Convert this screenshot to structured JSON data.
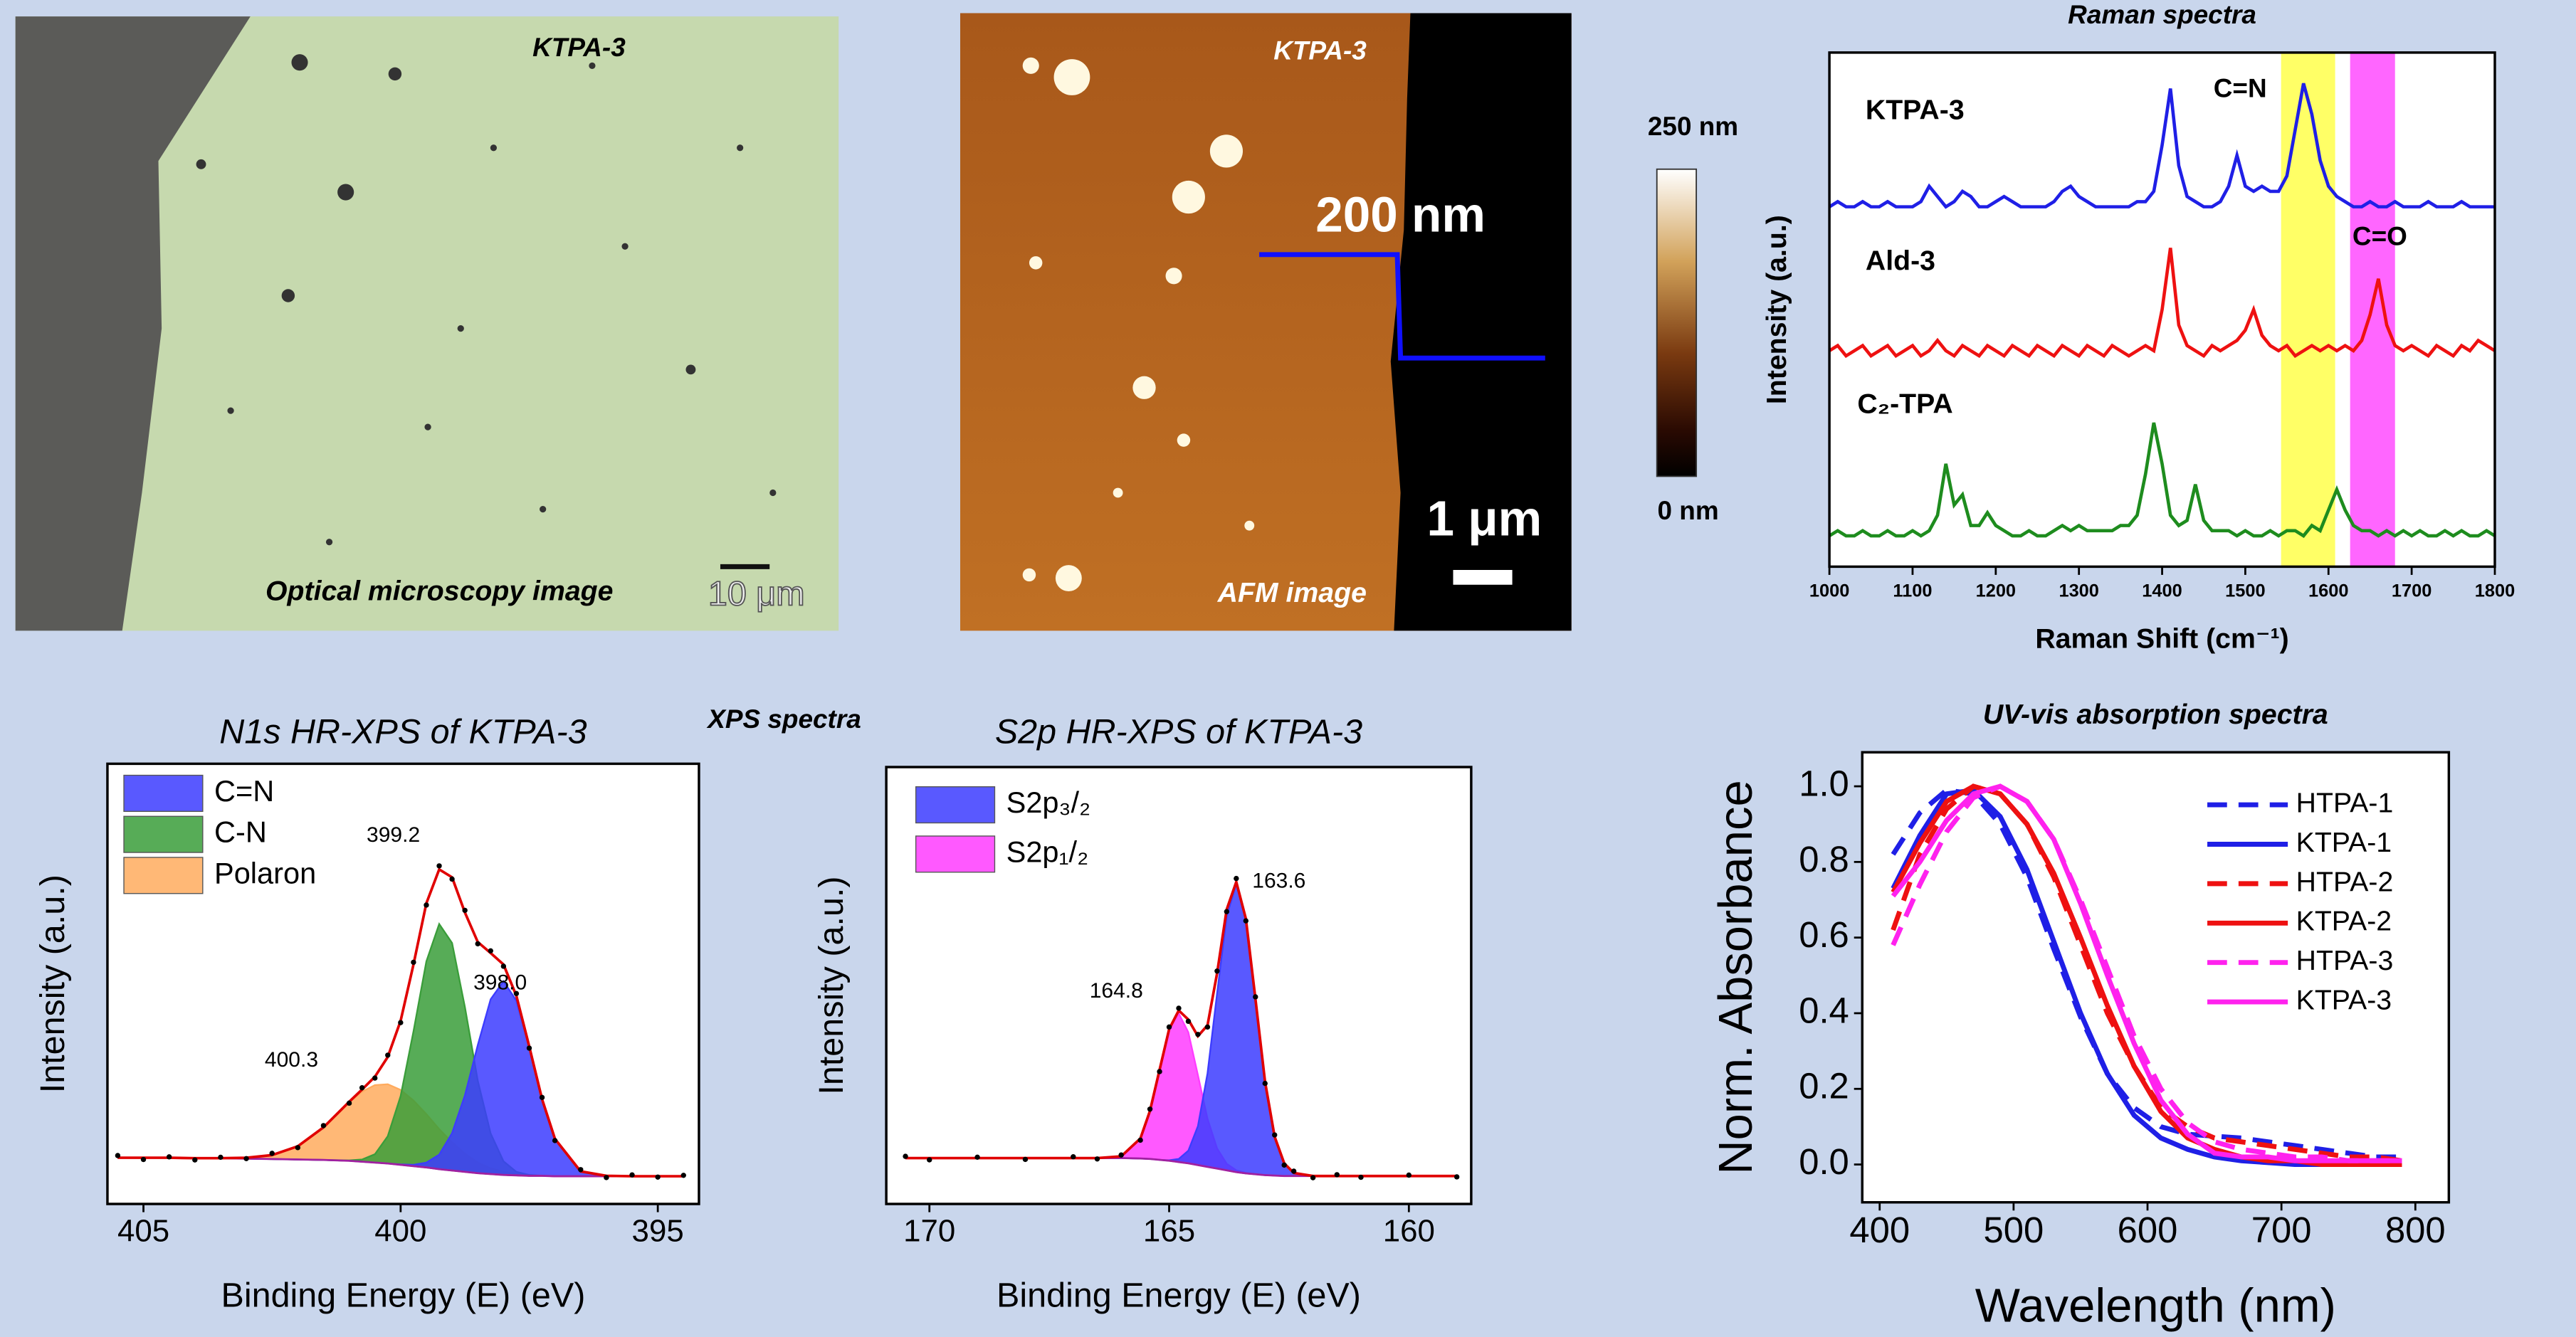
{
  "optical": {
    "sample": "KTPA-3",
    "caption": "Optical microscopy image",
    "scale_bar": "10 μm"
  },
  "afm": {
    "sample": "KTPA-3",
    "caption": "AFM image",
    "step_height": "200 nm",
    "scale_bar": "1 μm",
    "colorbar_max": "250 nm",
    "colorbar_min": "0 nm"
  },
  "xps_header": "XPS spectra",
  "chart_data": [
    {
      "type": "line",
      "title": "Raman spectra",
      "xlabel": "Raman Shift (cm⁻¹)",
      "ylabel": "Intensity (a.u.)",
      "xlim": [
        1000,
        1800
      ],
      "ylim": [
        0,
        1
      ],
      "xticks": [
        1000,
        1100,
        1200,
        1300,
        1400,
        1500,
        1600,
        1700,
        1800
      ],
      "bands": [
        {
          "label": "C=N",
          "range": [
            1543,
            1608
          ],
          "color": "#ffff66"
        },
        {
          "label": "C=O",
          "range": [
            1626,
            1680
          ],
          "color": "#ff66ff"
        }
      ],
      "x": [
        1000,
        1010,
        1020,
        1030,
        1040,
        1050,
        1060,
        1070,
        1080,
        1090,
        1100,
        1110,
        1120,
        1130,
        1140,
        1150,
        1160,
        1170,
        1180,
        1190,
        1200,
        1210,
        1220,
        1230,
        1240,
        1250,
        1260,
        1270,
        1280,
        1290,
        1300,
        1310,
        1320,
        1330,
        1340,
        1350,
        1360,
        1370,
        1380,
        1390,
        1400,
        1410,
        1420,
        1430,
        1440,
        1450,
        1460,
        1470,
        1480,
        1490,
        1500,
        1510,
        1520,
        1530,
        1540,
        1550,
        1560,
        1570,
        1580,
        1590,
        1600,
        1610,
        1620,
        1630,
        1640,
        1650,
        1660,
        1670,
        1680,
        1690,
        1700,
        1710,
        1720,
        1730,
        1740,
        1750,
        1760,
        1770,
        1780,
        1790,
        1800
      ],
      "series": [
        {
          "name": "KTPA-3",
          "color": "#1f1fe6",
          "values": [
            0.7,
            0.71,
            0.7,
            0.7,
            0.71,
            0.7,
            0.7,
            0.71,
            0.7,
            0.7,
            0.7,
            0.71,
            0.74,
            0.72,
            0.7,
            0.71,
            0.73,
            0.72,
            0.7,
            0.7,
            0.71,
            0.72,
            0.71,
            0.7,
            0.7,
            0.7,
            0.7,
            0.71,
            0.73,
            0.74,
            0.72,
            0.71,
            0.7,
            0.7,
            0.7,
            0.7,
            0.7,
            0.71,
            0.71,
            0.73,
            0.82,
            0.93,
            0.78,
            0.72,
            0.71,
            0.7,
            0.7,
            0.71,
            0.74,
            0.8,
            0.74,
            0.73,
            0.74,
            0.73,
            0.73,
            0.76,
            0.85,
            0.94,
            0.88,
            0.79,
            0.74,
            0.72,
            0.71,
            0.7,
            0.7,
            0.71,
            0.7,
            0.7,
            0.71,
            0.7,
            0.7,
            0.7,
            0.71,
            0.7,
            0.7,
            0.7,
            0.71,
            0.7,
            0.7,
            0.7,
            0.7
          ]
        },
        {
          "name": "Ald-3",
          "color": "#ee1111",
          "values": [
            0.42,
            0.43,
            0.41,
            0.42,
            0.43,
            0.41,
            0.42,
            0.43,
            0.41,
            0.42,
            0.43,
            0.41,
            0.42,
            0.44,
            0.42,
            0.41,
            0.43,
            0.42,
            0.41,
            0.43,
            0.42,
            0.41,
            0.43,
            0.42,
            0.41,
            0.43,
            0.42,
            0.41,
            0.43,
            0.42,
            0.41,
            0.43,
            0.42,
            0.41,
            0.43,
            0.42,
            0.41,
            0.42,
            0.43,
            0.42,
            0.5,
            0.62,
            0.47,
            0.43,
            0.42,
            0.41,
            0.43,
            0.42,
            0.43,
            0.44,
            0.46,
            0.5,
            0.45,
            0.43,
            0.42,
            0.43,
            0.41,
            0.42,
            0.43,
            0.42,
            0.43,
            0.42,
            0.43,
            0.42,
            0.44,
            0.49,
            0.56,
            0.47,
            0.43,
            0.42,
            0.43,
            0.42,
            0.41,
            0.43,
            0.42,
            0.41,
            0.43,
            0.42,
            0.44,
            0.43,
            0.42
          ]
        },
        {
          "name": "C₂-TPA",
          "color": "#1e8c1e",
          "values": [
            0.06,
            0.07,
            0.06,
            0.06,
            0.07,
            0.06,
            0.06,
            0.07,
            0.06,
            0.06,
            0.07,
            0.06,
            0.07,
            0.1,
            0.2,
            0.12,
            0.14,
            0.08,
            0.08,
            0.105,
            0.08,
            0.07,
            0.06,
            0.06,
            0.07,
            0.06,
            0.06,
            0.07,
            0.08,
            0.07,
            0.08,
            0.07,
            0.07,
            0.07,
            0.07,
            0.08,
            0.08,
            0.1,
            0.18,
            0.28,
            0.2,
            0.1,
            0.08,
            0.09,
            0.16,
            0.09,
            0.07,
            0.07,
            0.07,
            0.06,
            0.07,
            0.06,
            0.06,
            0.07,
            0.06,
            0.07,
            0.07,
            0.06,
            0.08,
            0.07,
            0.11,
            0.15,
            0.11,
            0.08,
            0.07,
            0.07,
            0.06,
            0.07,
            0.06,
            0.07,
            0.06,
            0.07,
            0.06,
            0.06,
            0.07,
            0.06,
            0.07,
            0.06,
            0.06,
            0.07,
            0.06
          ]
        }
      ]
    },
    {
      "type": "peakfit",
      "title": "N1s HR-XPS of KTPA-3",
      "xlabel": "Binding Energy (E) (eV)",
      "ylabel": "Intensity (a.u.)",
      "xlim": [
        405.7,
        394.2
      ],
      "ylim": [
        0,
        1
      ],
      "xticks": [
        405,
        400,
        395
      ],
      "x": [
        405.5,
        405,
        404.5,
        404,
        403.5,
        403,
        402.5,
        402,
        401.5,
        401,
        400.75,
        400.5,
        400.25,
        400,
        399.75,
        399.5,
        399.25,
        399,
        398.75,
        398.5,
        398.25,
        398,
        397.75,
        397.5,
        397.25,
        397,
        396.5,
        396,
        395.5,
        395,
        394.5
      ],
      "measured": {
        "color": "#000000",
        "values": [
          0.11,
          0.101,
          0.107,
          0.1,
          0.106,
          0.103,
          0.115,
          0.128,
          0.178,
          0.229,
          0.264,
          0.286,
          0.338,
          0.412,
          0.549,
          0.679,
          0.768,
          0.738,
          0.667,
          0.591,
          0.575,
          0.54,
          0.478,
          0.354,
          0.242,
          0.144,
          0.078,
          0.06,
          0.066,
          0.061,
          0.065
        ]
      },
      "fit": {
        "color": "#e00000",
        "values": [
          0.105,
          0.105,
          0.105,
          0.104,
          0.104,
          0.105,
          0.111,
          0.131,
          0.174,
          0.232,
          0.26,
          0.289,
          0.334,
          0.416,
          0.544,
          0.683,
          0.76,
          0.742,
          0.662,
          0.595,
          0.57,
          0.544,
          0.473,
          0.358,
          0.238,
          0.148,
          0.074,
          0.064,
          0.063,
          0.063,
          0.063
        ]
      },
      "background": {
        "color": "#a020a0",
        "values": [
          0.105,
          0.105,
          0.105,
          0.104,
          0.104,
          0.103,
          0.102,
          0.101,
          0.1,
          0.098,
          0.096,
          0.094,
          0.092,
          0.089,
          0.086,
          0.083,
          0.079,
          0.076,
          0.073,
          0.07,
          0.068,
          0.066,
          0.065,
          0.064,
          0.064,
          0.063,
          0.063,
          0.063,
          0.063,
          0.063,
          0.063
        ]
      },
      "series": [
        {
          "name": "C=N",
          "color": "#3c3cff",
          "values": [
            0,
            0,
            0,
            0,
            0,
            0,
            0,
            0,
            0,
            0,
            0,
            0,
            0,
            0.001,
            0.003,
            0.011,
            0.033,
            0.085,
            0.174,
            0.291,
            0.397,
            0.44,
            0.397,
            0.291,
            0.174,
            0.085,
            0.011,
            0.001,
            0,
            0,
            0
          ]
        },
        {
          "name": "C-N",
          "color": "#3a9d3a",
          "values": [
            0,
            0,
            0,
            0,
            0,
            0,
            0,
            0,
            0,
            0.001,
            0.005,
            0.019,
            0.062,
            0.156,
            0.306,
            0.468,
            0.557,
            0.517,
            0.374,
            0.21,
            0.092,
            0.031,
            0.008,
            0.002,
            0,
            0,
            0,
            0,
            0,
            0,
            0
          ]
        },
        {
          "name": "Polaron",
          "color": "#ffab5e",
          "values": [
            0,
            0,
            0,
            0,
            0,
            0.002,
            0.009,
            0.03,
            0.074,
            0.133,
            0.159,
            0.176,
            0.18,
            0.17,
            0.149,
            0.121,
            0.091,
            0.064,
            0.041,
            0.024,
            0.013,
            0.007,
            0.003,
            0.001,
            0,
            0,
            0,
            0,
            0,
            0,
            0
          ]
        }
      ],
      "peak_labels": [
        "399.2",
        "398.0",
        "400.3"
      ]
    },
    {
      "type": "peakfit",
      "title": "S2p HR-XPS of KTPA-3",
      "xlabel": "Binding Energy (E) (eV)",
      "ylabel": "Intensity (a.u.)",
      "xlim": [
        170.9,
        158.7
      ],
      "ylim": [
        0,
        1
      ],
      "xticks": [
        170,
        165,
        160
      ],
      "x": [
        170.5,
        170,
        169,
        168,
        167,
        166.5,
        166,
        165.6,
        165.4,
        165.2,
        165,
        164.8,
        164.6,
        164.4,
        164.2,
        164,
        163.8,
        163.6,
        163.4,
        163.2,
        163,
        162.8,
        162.6,
        162.4,
        162,
        161.5,
        161,
        160,
        159
      ],
      "measured": {
        "color": "#000000",
        "values": [
          0.109,
          0.101,
          0.107,
          0.102,
          0.108,
          0.103,
          0.112,
          0.146,
          0.217,
          0.303,
          0.405,
          0.448,
          0.418,
          0.388,
          0.405,
          0.533,
          0.669,
          0.745,
          0.648,
          0.474,
          0.276,
          0.158,
          0.089,
          0.075,
          0.06,
          0.067,
          0.061,
          0.066,
          0.062
        ]
      },
      "fit": {
        "color": "#e00000",
        "values": [
          0.105,
          0.105,
          0.105,
          0.105,
          0.105,
          0.105,
          0.109,
          0.15,
          0.213,
          0.307,
          0.4,
          0.443,
          0.422,
          0.384,
          0.409,
          0.528,
          0.674,
          0.737,
          0.653,
          0.469,
          0.28,
          0.154,
          0.093,
          0.071,
          0.064,
          0.064,
          0.064,
          0.064,
          0.064
        ]
      },
      "background": {
        "color": "#a020a0",
        "values": [
          0.105,
          0.105,
          0.105,
          0.105,
          0.105,
          0.105,
          0.105,
          0.104,
          0.103,
          0.101,
          0.099,
          0.096,
          0.093,
          0.089,
          0.085,
          0.081,
          0.077,
          0.073,
          0.07,
          0.068,
          0.066,
          0.065,
          0.064,
          0.064,
          0.064,
          0.064,
          0.064,
          0.064,
          0.064
        ]
      },
      "series": [
        {
          "name": "S2p₃/₂",
          "color": "#3c3cff",
          "values": [
            0,
            0,
            0,
            0,
            0,
            0,
            0,
            0,
            0,
            0,
            0.001,
            0.007,
            0.029,
            0.089,
            0.214,
            0.401,
            0.582,
            0.66,
            0.582,
            0.401,
            0.214,
            0.089,
            0.029,
            0.007,
            0,
            0,
            0,
            0,
            0
          ]
        },
        {
          "name": "S2p₁/₂",
          "color": "#ff3cff",
          "values": [
            0,
            0,
            0,
            0,
            0,
            0,
            0.004,
            0.046,
            0.11,
            0.206,
            0.3,
            0.34,
            0.3,
            0.206,
            0.11,
            0.046,
            0.015,
            0.004,
            0.001,
            0,
            0,
            0,
            0,
            0,
            0,
            0,
            0,
            0,
            0
          ]
        }
      ],
      "peak_labels": [
        "163.6",
        "164.8"
      ]
    },
    {
      "type": "line",
      "title": "UV-vis absorption spectra",
      "xlabel": "Wavelength (nm)",
      "ylabel": "Norm. Absorbance",
      "xlim": [
        387,
        825
      ],
      "ylim": [
        -0.1,
        1.09
      ],
      "xticks": [
        400,
        500,
        600,
        700,
        800
      ],
      "yticks": [
        {
          "value": 0,
          "label": "0.0"
        },
        0.2,
        0.4,
        0.6,
        0.8,
        {
          "value": 1,
          "label": "1.0"
        }
      ],
      "x": [
        410,
        430,
        450,
        470,
        490,
        510,
        530,
        550,
        570,
        590,
        610,
        630,
        650,
        670,
        690,
        710,
        730,
        750,
        770,
        790
      ],
      "series": [
        {
          "name": "HTPA-1",
          "color": "#1f1fe6",
          "dashed": true,
          "values": [
            0.82,
            0.93,
            0.99,
            0.98,
            0.9,
            0.76,
            0.57,
            0.39,
            0.24,
            0.15,
            0.1,
            0.08,
            0.075,
            0.07,
            0.06,
            0.05,
            0.04,
            0.03,
            0.02,
            0.02
          ]
        },
        {
          "name": "KTPA-1",
          "color": "#1f1fe6",
          "dashed": false,
          "values": [
            0.73,
            0.87,
            0.98,
            0.99,
            0.92,
            0.78,
            0.59,
            0.4,
            0.24,
            0.13,
            0.07,
            0.04,
            0.02,
            0.01,
            0.005,
            0,
            0,
            0,
            0,
            0
          ]
        },
        {
          "name": "HTPA-2",
          "color": "#ee1111",
          "dashed": true,
          "values": [
            0.62,
            0.82,
            0.94,
            1.0,
            0.98,
            0.9,
            0.76,
            0.58,
            0.4,
            0.26,
            0.15,
            0.1,
            0.07,
            0.06,
            0.05,
            0.04,
            0.03,
            0.02,
            0.02,
            0.01
          ]
        },
        {
          "name": "KTPA-2",
          "color": "#ee1111",
          "dashed": false,
          "values": [
            0.72,
            0.85,
            0.96,
            1.0,
            0.98,
            0.9,
            0.77,
            0.6,
            0.42,
            0.26,
            0.14,
            0.07,
            0.04,
            0.02,
            0.01,
            0.01,
            0,
            0,
            0,
            0
          ]
        },
        {
          "name": "HTPA-3",
          "color": "#ff22ee",
          "dashed": true,
          "values": [
            0.58,
            0.74,
            0.88,
            0.97,
            1.0,
            0.96,
            0.86,
            0.7,
            0.52,
            0.34,
            0.2,
            0.11,
            0.06,
            0.04,
            0.03,
            0.02,
            0.02,
            0.01,
            0.01,
            0.01
          ]
        },
        {
          "name": "KTPA-3",
          "color": "#ff22ee",
          "dashed": false,
          "values": [
            0.71,
            0.8,
            0.91,
            0.98,
            1.0,
            0.96,
            0.86,
            0.69,
            0.5,
            0.32,
            0.17,
            0.08,
            0.03,
            0.02,
            0.02,
            0.01,
            0.01,
            0.01,
            0.01,
            0.01
          ]
        }
      ]
    }
  ]
}
